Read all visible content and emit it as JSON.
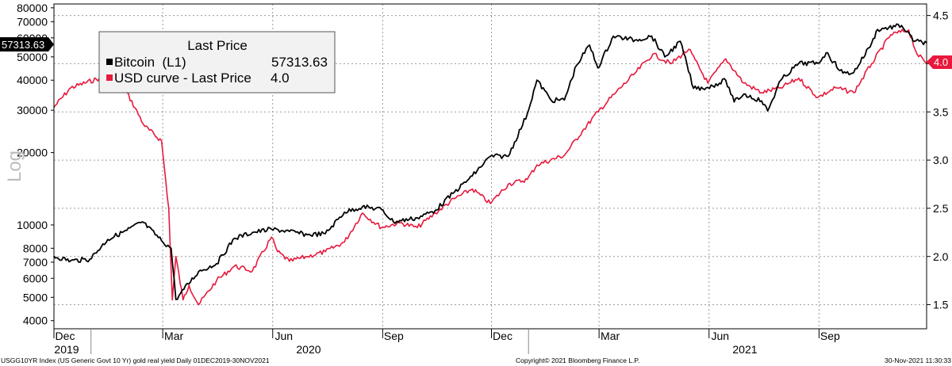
{
  "chart_data": {
    "type": "line",
    "y_scale_left": "log",
    "y_label_left": "Log",
    "legend": {
      "title": "Last Price",
      "entries": [
        {
          "label": "Bitcoin  (L1)",
          "value": "57313.63",
          "color": "#000000"
        },
        {
          "label": "USD curve - Last Price",
          "value": "4.0",
          "color": "#e8193c"
        }
      ],
      "placement": "top-left"
    },
    "left_axis": {
      "ticks": [
        4000,
        5000,
        6000,
        7000,
        8000,
        10000,
        20000,
        30000,
        40000,
        50000,
        60000,
        70000,
        80000
      ],
      "labels": [
        "4000",
        "5000",
        "6000",
        "7000",
        "8000",
        "10000",
        "20000",
        "30000",
        "40000",
        "50000",
        "60000",
        "70000",
        "80000"
      ],
      "range": [
        3700,
        83000
      ]
    },
    "right_axis": {
      "ticks": [
        1.5,
        2.0,
        2.5,
        3.0,
        3.5,
        4.0,
        4.5
      ],
      "labels": [
        "1.5",
        "2.0",
        "2.5",
        "3.0",
        "3.5",
        "4.0",
        "4.5"
      ],
      "range": [
        1.25,
        4.62
      ]
    },
    "x_axis": {
      "months": [
        "Dec",
        "Mar",
        "Jun",
        "Sep",
        "Dec",
        "Mar",
        "Jun",
        "Sep"
      ],
      "years": [
        "2019",
        "2020",
        "2021"
      ],
      "range": [
        "2019-12-01",
        "2021-11-30"
      ]
    },
    "last_value_tags": {
      "left": "57313.63",
      "right": "4.0"
    },
    "grid": true,
    "series": [
      {
        "name": "Bitcoin  (L1)",
        "axis": "left",
        "color": "#000000",
        "x": [
          "2019-12-01",
          "2019-12-15",
          "2019-12-31",
          "2020-01-15",
          "2020-01-31",
          "2020-02-13",
          "2020-02-29",
          "2020-03-08",
          "2020-03-12",
          "2020-03-16",
          "2020-03-31",
          "2020-04-15",
          "2020-04-30",
          "2020-05-15",
          "2020-05-31",
          "2020-06-15",
          "2020-06-30",
          "2020-07-15",
          "2020-07-31",
          "2020-08-15",
          "2020-08-31",
          "2020-09-10",
          "2020-09-30",
          "2020-10-15",
          "2020-10-31",
          "2020-11-15",
          "2020-11-30",
          "2020-12-15",
          "2020-12-31",
          "2021-01-08",
          "2021-01-20",
          "2021-01-31",
          "2021-02-10",
          "2021-02-21",
          "2021-02-28",
          "2021-03-13",
          "2021-03-31",
          "2021-04-14",
          "2021-04-25",
          "2021-05-08",
          "2021-05-19",
          "2021-05-31",
          "2021-06-15",
          "2021-06-22",
          "2021-06-30",
          "2021-07-15",
          "2021-07-20",
          "2021-07-31",
          "2021-08-15",
          "2021-08-31",
          "2021-09-07",
          "2021-09-21",
          "2021-09-30",
          "2021-10-15",
          "2021-10-20",
          "2021-11-09",
          "2021-11-20",
          "2021-11-30"
        ],
        "values": [
          7400,
          7100,
          7200,
          8700,
          9500,
          10300,
          8600,
          8000,
          4900,
          5200,
          6400,
          6900,
          8800,
          9300,
          9600,
          9400,
          9100,
          9200,
          11300,
          11900,
          11600,
          10300,
          10700,
          11500,
          13700,
          16000,
          19300,
          19300,
          29000,
          40000,
          33000,
          33100,
          46000,
          56000,
          45000,
          61000,
          58700,
          61000,
          50000,
          58000,
          37000,
          37300,
          40000,
          32500,
          35000,
          32800,
          29800,
          40000,
          47000,
          47000,
          52000,
          42800,
          43000,
          57000,
          65000,
          67500,
          58000,
          57313.63
        ]
      },
      {
        "name": "USD curve - Last Price",
        "axis": "right",
        "color": "#e8193c",
        "x": [
          "2019-12-01",
          "2019-12-15",
          "2020-01-08",
          "2020-01-20",
          "2020-01-31",
          "2020-02-15",
          "2020-02-29",
          "2020-03-06",
          "2020-03-09",
          "2020-03-12",
          "2020-03-18",
          "2020-03-23",
          "2020-03-31",
          "2020-04-15",
          "2020-04-30",
          "2020-05-15",
          "2020-05-31",
          "2020-06-05",
          "2020-06-15",
          "2020-06-30",
          "2020-07-15",
          "2020-07-31",
          "2020-08-15",
          "2020-08-31",
          "2020-09-15",
          "2020-09-30",
          "2020-10-15",
          "2020-10-31",
          "2020-11-15",
          "2020-11-30",
          "2020-12-15",
          "2020-12-31",
          "2021-01-08",
          "2021-01-31",
          "2021-02-15",
          "2021-02-28",
          "2021-03-15",
          "2021-03-31",
          "2021-04-15",
          "2021-04-30",
          "2021-05-15",
          "2021-05-31",
          "2021-06-15",
          "2021-06-30",
          "2021-07-15",
          "2021-07-31",
          "2021-08-15",
          "2021-08-31",
          "2021-09-15",
          "2021-09-30",
          "2021-10-15",
          "2021-10-31",
          "2021-11-15",
          "2021-11-22",
          "2021-11-30"
        ],
        "values": [
          3.55,
          3.75,
          3.85,
          3.8,
          3.7,
          3.35,
          3.2,
          2.5,
          1.55,
          2.0,
          1.55,
          1.7,
          1.5,
          1.75,
          1.9,
          1.85,
          2.2,
          2.05,
          1.95,
          2.0,
          2.05,
          2.15,
          2.45,
          2.3,
          2.35,
          2.3,
          2.45,
          2.6,
          2.7,
          2.55,
          2.75,
          2.8,
          2.95,
          3.05,
          3.3,
          3.5,
          3.7,
          3.9,
          4.1,
          4.0,
          4.15,
          3.8,
          4.05,
          3.8,
          3.7,
          3.75,
          3.85,
          3.65,
          3.75,
          3.7,
          4.0,
          4.3,
          4.35,
          4.1,
          4.0
        ]
      }
    ]
  },
  "footer": {
    "left": "USGG10YR Index (US Generic Govt 10 Yr) gold real yield  Daily 01DEC2019-30NOV2021",
    "center": "Copyright© 2021 Bloomberg Finance L.P.",
    "right": "30-Nov-2021 11:30:33"
  }
}
